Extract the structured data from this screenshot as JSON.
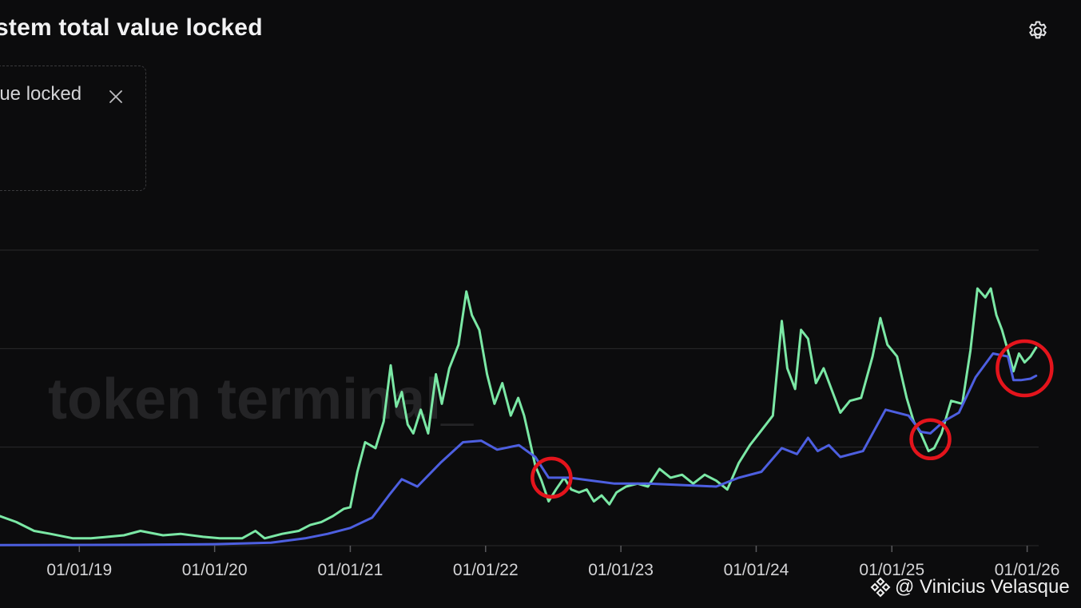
{
  "header": {
    "title": "stem total value locked",
    "settings_icon": "gear-icon"
  },
  "legend": {
    "item_label": "lue locked",
    "close_icon": "close-icon"
  },
  "watermark": {
    "brand_text": "token terminal_",
    "author": "@ Vinicius Velasque",
    "author_icon": "binance-diamond-icon"
  },
  "colors": {
    "background": "#0c0c0d",
    "series_green": "#7be8a5",
    "series_blue": "#4d5fe0",
    "highlight_circle": "#e4141c",
    "gridline": "#2a2a2c",
    "tick_text": "#d4d4d6"
  },
  "chart_data": {
    "type": "line",
    "x_tick_labels": [
      "01/01/19",
      "01/01/20",
      "01/01/21",
      "01/01/22",
      "01/01/23",
      "01/01/24",
      "01/01/25",
      "01/01/26"
    ],
    "x_range": [
      "2018-06-01",
      "2026-02-01"
    ],
    "y_range": [
      0,
      100
    ],
    "y_unit": "relative (no y-axis labels visible)",
    "grid": "horizontal lines",
    "series": [
      {
        "color": "#7be8a5",
        "points": [
          [
            "2018-06-01",
            10
          ],
          [
            "2018-07-15",
            8
          ],
          [
            "2018-09-01",
            5
          ],
          [
            "2018-10-15",
            4
          ],
          [
            "2018-12-15",
            2.5
          ],
          [
            "2019-02-01",
            2.5
          ],
          [
            "2019-05-01",
            3.5
          ],
          [
            "2019-06-15",
            5
          ],
          [
            "2019-08-15",
            3.5
          ],
          [
            "2019-10-01",
            4
          ],
          [
            "2019-12-01",
            3
          ],
          [
            "2020-01-15",
            2.5
          ],
          [
            "2020-03-15",
            2.5
          ],
          [
            "2020-04-20",
            5
          ],
          [
            "2020-05-15",
            2.5
          ],
          [
            "2020-07-01",
            4
          ],
          [
            "2020-08-15",
            5
          ],
          [
            "2020-09-15",
            7
          ],
          [
            "2020-10-15",
            8
          ],
          [
            "2020-11-15",
            10
          ],
          [
            "2020-12-15",
            12.5
          ],
          [
            "2021-01-01",
            13
          ],
          [
            "2021-01-20",
            25
          ],
          [
            "2021-02-10",
            35
          ],
          [
            "2021-03-10",
            33
          ],
          [
            "2021-04-01",
            42
          ],
          [
            "2021-04-20",
            61
          ],
          [
            "2021-05-05",
            47
          ],
          [
            "2021-05-20",
            52
          ],
          [
            "2021-06-05",
            41
          ],
          [
            "2021-06-20",
            38
          ],
          [
            "2021-07-10",
            46
          ],
          [
            "2021-07-30",
            38
          ],
          [
            "2021-08-20",
            58
          ],
          [
            "2021-09-05",
            48
          ],
          [
            "2021-09-25",
            60
          ],
          [
            "2021-10-20",
            68
          ],
          [
            "2021-11-10",
            86
          ],
          [
            "2021-11-25",
            78
          ],
          [
            "2021-12-15",
            73
          ],
          [
            "2022-01-05",
            58
          ],
          [
            "2022-01-25",
            48
          ],
          [
            "2022-02-15",
            55
          ],
          [
            "2022-03-10",
            44
          ],
          [
            "2022-03-30",
            50
          ],
          [
            "2022-04-15",
            44
          ],
          [
            "2022-05-01",
            35
          ],
          [
            "2022-05-15",
            27
          ],
          [
            "2022-06-01",
            22
          ],
          [
            "2022-06-20",
            15
          ],
          [
            "2022-07-10",
            19
          ],
          [
            "2022-08-01",
            23
          ],
          [
            "2022-08-20",
            19
          ],
          [
            "2022-09-10",
            18
          ],
          [
            "2022-10-01",
            19
          ],
          [
            "2022-10-20",
            15
          ],
          [
            "2022-11-10",
            17
          ],
          [
            "2022-12-01",
            14
          ],
          [
            "2022-12-20",
            18
          ],
          [
            "2023-01-15",
            20
          ],
          [
            "2023-02-15",
            21
          ],
          [
            "2023-03-15",
            20
          ],
          [
            "2023-04-15",
            26
          ],
          [
            "2023-05-15",
            23
          ],
          [
            "2023-06-15",
            24
          ],
          [
            "2023-07-15",
            21
          ],
          [
            "2023-08-15",
            24
          ],
          [
            "2023-09-15",
            22
          ],
          [
            "2023-10-15",
            19
          ],
          [
            "2023-11-15",
            28
          ],
          [
            "2023-12-15",
            34
          ],
          [
            "2024-01-15",
            39
          ],
          [
            "2024-02-15",
            44
          ],
          [
            "2024-03-10",
            76
          ],
          [
            "2024-03-25",
            60
          ],
          [
            "2024-04-15",
            53
          ],
          [
            "2024-05-01",
            73
          ],
          [
            "2024-05-20",
            70
          ],
          [
            "2024-06-10",
            55
          ],
          [
            "2024-07-01",
            60
          ],
          [
            "2024-07-25",
            52
          ],
          [
            "2024-08-15",
            45
          ],
          [
            "2024-09-10",
            49
          ],
          [
            "2024-10-10",
            50
          ],
          [
            "2024-11-10",
            64
          ],
          [
            "2024-12-01",
            77
          ],
          [
            "2024-12-20",
            68
          ],
          [
            "2025-01-15",
            64
          ],
          [
            "2025-02-10",
            50
          ],
          [
            "2025-03-01",
            42
          ],
          [
            "2025-03-20",
            38
          ],
          [
            "2025-04-10",
            32
          ],
          [
            "2025-04-25",
            33
          ],
          [
            "2025-05-15",
            38
          ],
          [
            "2025-06-10",
            49
          ],
          [
            "2025-07-10",
            48
          ],
          [
            "2025-08-01",
            66
          ],
          [
            "2025-08-20",
            87
          ],
          [
            "2025-09-10",
            84
          ],
          [
            "2025-09-25",
            87
          ],
          [
            "2025-10-10",
            78
          ],
          [
            "2025-10-25",
            73
          ],
          [
            "2025-11-10",
            66
          ],
          [
            "2025-11-25",
            59
          ],
          [
            "2025-12-10",
            65
          ],
          [
            "2025-12-25",
            62
          ],
          [
            "2026-01-10",
            64
          ],
          [
            "2026-01-25",
            67
          ]
        ]
      },
      {
        "color": "#4d5fe0",
        "points": [
          [
            "2018-06-01",
            0.2
          ],
          [
            "2019-06-01",
            0.3
          ],
          [
            "2020-01-01",
            0.5
          ],
          [
            "2020-06-01",
            1
          ],
          [
            "2020-09-01",
            2.5
          ],
          [
            "2020-11-01",
            4
          ],
          [
            "2021-01-01",
            6
          ],
          [
            "2021-03-01",
            9.5
          ],
          [
            "2021-04-15",
            17
          ],
          [
            "2021-05-20",
            22.5
          ],
          [
            "2021-07-01",
            20
          ],
          [
            "2021-09-01",
            28
          ],
          [
            "2021-11-01",
            35
          ],
          [
            "2021-12-20",
            35.5
          ],
          [
            "2022-02-01",
            32.5
          ],
          [
            "2022-04-01",
            34
          ],
          [
            "2022-05-15",
            30
          ],
          [
            "2022-06-20",
            23
          ],
          [
            "2022-08-15",
            23
          ],
          [
            "2022-10-15",
            22
          ],
          [
            "2022-12-15",
            21
          ],
          [
            "2023-03-15",
            21
          ],
          [
            "2023-06-15",
            20.5
          ],
          [
            "2023-09-15",
            20
          ],
          [
            "2023-11-15",
            23
          ],
          [
            "2024-01-15",
            25
          ],
          [
            "2024-03-10",
            33
          ],
          [
            "2024-04-20",
            31
          ],
          [
            "2024-05-20",
            36.5
          ],
          [
            "2024-06-15",
            32
          ],
          [
            "2024-07-15",
            34
          ],
          [
            "2024-08-15",
            30
          ],
          [
            "2024-10-15",
            32
          ],
          [
            "2024-12-15",
            46
          ],
          [
            "2025-02-15",
            44
          ],
          [
            "2025-03-20",
            38.5
          ],
          [
            "2025-04-15",
            38
          ],
          [
            "2025-05-20",
            42
          ],
          [
            "2025-07-01",
            45
          ],
          [
            "2025-08-15",
            57
          ],
          [
            "2025-10-01",
            65
          ],
          [
            "2025-11-10",
            64
          ],
          [
            "2025-11-25",
            56
          ],
          [
            "2025-12-15",
            56
          ],
          [
            "2026-01-10",
            56.5
          ],
          [
            "2026-01-25",
            57.5
          ]
        ]
      }
    ],
    "annotations": [
      {
        "type": "circle",
        "color": "#e4141c",
        "x": "2022-06-28",
        "y": 23
      },
      {
        "type": "circle",
        "color": "#e4141c",
        "x": "2025-04-15",
        "y": 36
      },
      {
        "type": "circle",
        "color": "#e4141c",
        "x": "2025-12-25",
        "y": 60
      }
    ]
  }
}
